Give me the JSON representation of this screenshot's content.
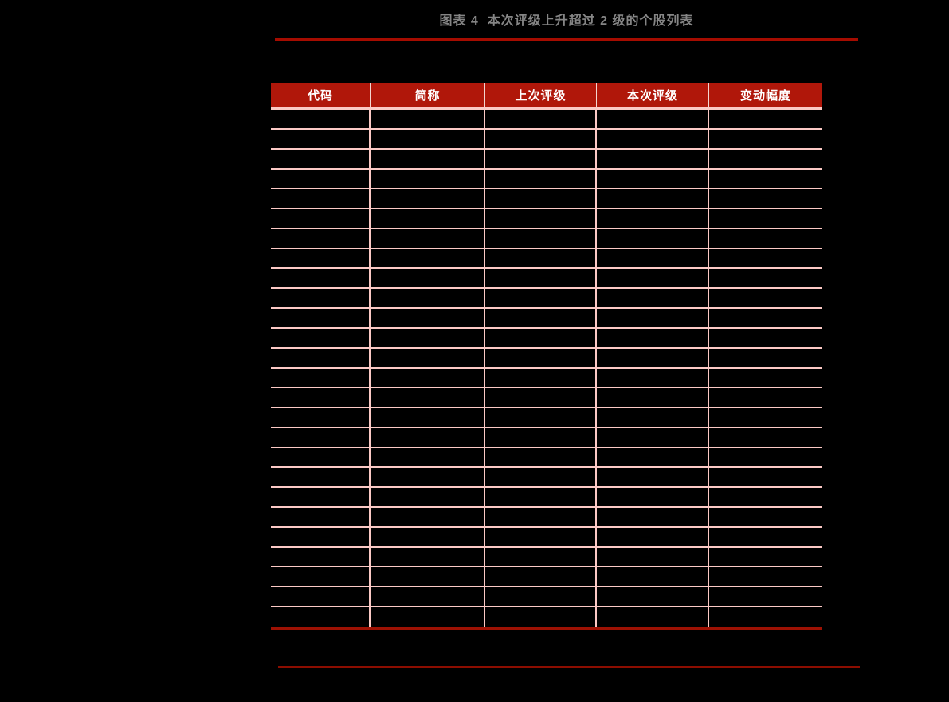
{
  "figure": {
    "title": "图表 4  本次评级上升超过 2 级的个股列表"
  },
  "table": {
    "columns": [
      "代码",
      "简称",
      "上次评级",
      "本次评级",
      "变动幅度"
    ],
    "row_count": 26
  },
  "colors": {
    "page_bg": "#000000",
    "title_text": "#858585",
    "top_rule": "#a50c00",
    "header_bg": "#b0170a",
    "header_text": "#ffffff",
    "header_divider": "#f3d5d0",
    "grid_line": "#fbc9c5",
    "table_bottom_border": "#9e1103",
    "bottom_rule": "#8c0d00"
  }
}
